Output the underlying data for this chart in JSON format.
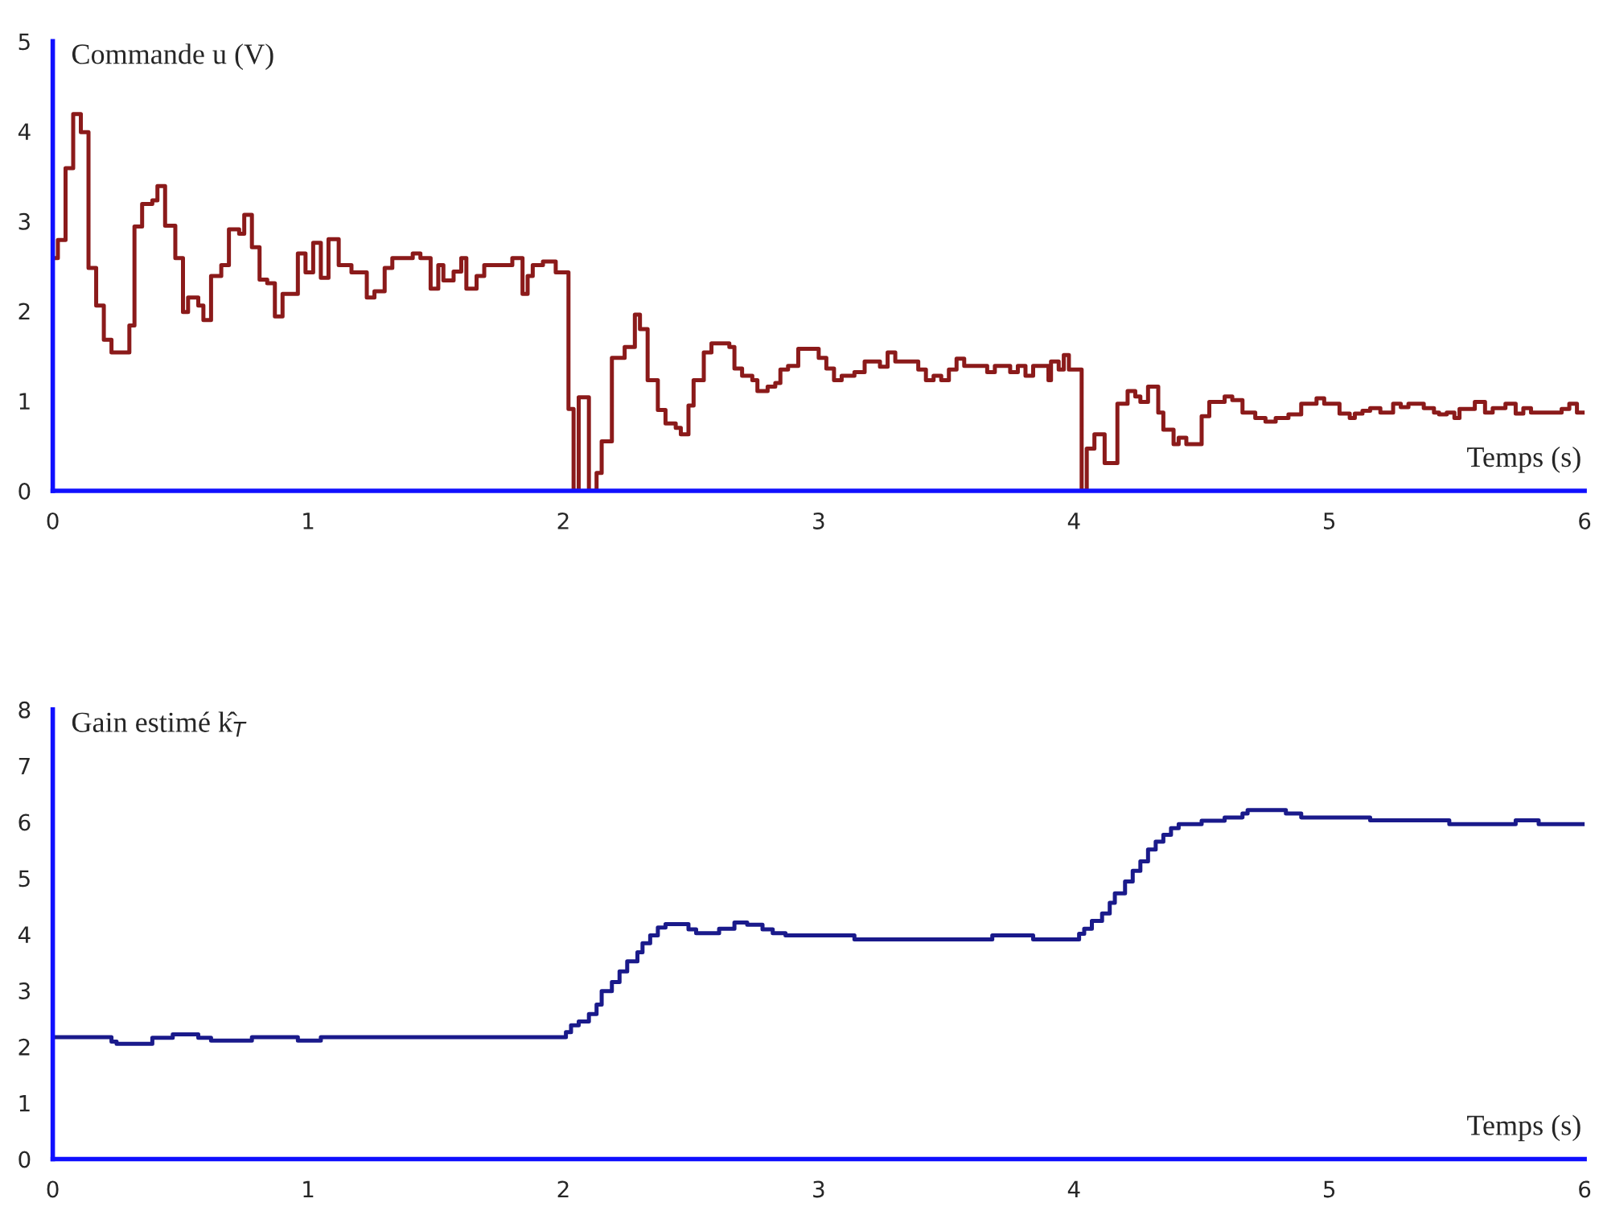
{
  "chart_data": [
    {
      "type": "step",
      "xlabel": "Temps (s)",
      "ylabel": "Commande u (V)",
      "xlim": [
        0,
        6
      ],
      "ylim": [
        0,
        5
      ],
      "xticks": [
        0,
        1,
        2,
        3,
        4,
        5,
        6
      ],
      "yticks": [
        0,
        1,
        2,
        3,
        4,
        5
      ],
      "grid": false,
      "legend": false,
      "series": [
        {
          "color": "#8b1a1a",
          "x": [
            0,
            0.02,
            0.05,
            0.08,
            0.11,
            0.14,
            0.17,
            0.2,
            0.23,
            0.3,
            0.32,
            0.35,
            0.39,
            0.41,
            0.44,
            0.48,
            0.51,
            0.53,
            0.57,
            0.59,
            0.62,
            0.66,
            0.69,
            0.73,
            0.75,
            0.78,
            0.81,
            0.84,
            0.87,
            0.9,
            0.96,
            0.99,
            1.02,
            1.05,
            1.08,
            1.12,
            1.17,
            1.23,
            1.26,
            1.3,
            1.33,
            1.41,
            1.44,
            1.48,
            1.51,
            1.53,
            1.57,
            1.6,
            1.62,
            1.66,
            1.69,
            1.8,
            1.84,
            1.86,
            1.88,
            1.92,
            1.97,
            2.02,
            2.04,
            2.06,
            2.1,
            2.13,
            2.15,
            2.19,
            2.24,
            2.28,
            2.3,
            2.33,
            2.37,
            2.4,
            2.44,
            2.46,
            2.49,
            2.51,
            2.55,
            2.58,
            2.65,
            2.67,
            2.7,
            2.74,
            2.76,
            2.8,
            2.83,
            2.85,
            2.88,
            2.92,
            3.0,
            3.03,
            3.06,
            3.09,
            3.14,
            3.18,
            3.24,
            3.27,
            3.3,
            3.39,
            3.42,
            3.45,
            3.48,
            3.51,
            3.54,
            3.57,
            3.66,
            3.69,
            3.75,
            3.78,
            3.81,
            3.84,
            3.9,
            3.91,
            3.94,
            3.96,
            3.98,
            4.03,
            4.05,
            4.08,
            4.12,
            4.17,
            4.21,
            4.24,
            4.26,
            4.29,
            4.33,
            4.35,
            4.39,
            4.41,
            4.44,
            4.5,
            4.53,
            4.59,
            4.62,
            4.66,
            4.71,
            4.75,
            4.79,
            4.84,
            4.89,
            4.95,
            4.98,
            5.04,
            5.08,
            5.1,
            5.13,
            5.16,
            5.2,
            5.25,
            5.28,
            5.31,
            5.37,
            5.41,
            5.43,
            5.46,
            5.49,
            5.51,
            5.57,
            5.61,
            5.64,
            5.69,
            5.73,
            5.76,
            5.79,
            5.91,
            5.94,
            5.97,
            6
          ],
          "values": [
            2.59,
            2.79,
            3.59,
            4.19,
            3.99,
            2.48,
            2.06,
            1.68,
            1.54,
            1.84,
            2.94,
            3.19,
            3.23,
            3.39,
            2.95,
            2.59,
            1.99,
            2.15,
            2.06,
            1.9,
            2.39,
            2.51,
            2.91,
            2.86,
            3.07,
            2.71,
            2.35,
            2.31,
            1.94,
            2.19,
            2.64,
            2.43,
            2.76,
            2.37,
            2.8,
            2.51,
            2.43,
            2.15,
            2.22,
            2.48,
            2.59,
            2.64,
            2.59,
            2.25,
            2.51,
            2.34,
            2.44,
            2.59,
            2.25,
            2.39,
            2.51,
            2.59,
            2.19,
            2.39,
            2.51,
            2.55,
            2.43,
            0.91,
            0,
            1.04,
            0,
            0.2,
            0.55,
            1.48,
            1.6,
            1.96,
            1.8,
            1.23,
            0.9,
            0.75,
            0.7,
            0.63,
            0.95,
            1.23,
            1.54,
            1.64,
            1.6,
            1.36,
            1.28,
            1.23,
            1.11,
            1.16,
            1.2,
            1.35,
            1.39,
            1.58,
            1.48,
            1.36,
            1.23,
            1.28,
            1.32,
            1.44,
            1.38,
            1.54,
            1.44,
            1.35,
            1.23,
            1.28,
            1.23,
            1.35,
            1.47,
            1.39,
            1.32,
            1.39,
            1.32,
            1.39,
            1.28,
            1.39,
            1.23,
            1.44,
            1.35,
            1.51,
            1.35,
            0,
            0.47,
            0.63,
            0.31,
            0.97,
            1.11,
            1.05,
            0.99,
            1.16,
            0.87,
            0.68,
            0.52,
            0.59,
            0.52,
            0.83,
            0.99,
            1.05,
            1.01,
            0.87,
            0.81,
            0.77,
            0.81,
            0.85,
            0.97,
            1.03,
            0.97,
            0.86,
            0.81,
            0.86,
            0.89,
            0.92,
            0.87,
            0.97,
            0.93,
            0.97,
            0.92,
            0.87,
            0.85,
            0.87,
            0.81,
            0.91,
            0.99,
            0.87,
            0.92,
            0.97,
            0.86,
            0.92,
            0.87,
            0.91,
            0.97,
            0.87,
            0.87
          ]
        }
      ]
    },
    {
      "type": "step",
      "xlabel": "Temps (s)",
      "ylabel": "Gain estimé k̂$_{T}$",
      "xlim": [
        0,
        6
      ],
      "ylim": [
        0,
        8
      ],
      "xticks": [
        0,
        1,
        2,
        3,
        4,
        5,
        6
      ],
      "yticks": [
        0,
        1,
        2,
        3,
        4,
        5,
        6,
        7,
        8
      ],
      "grid": false,
      "legend": false,
      "series": [
        {
          "color": "#1a1a8b",
          "x": [
            0,
            0.23,
            0.25,
            0.39,
            0.47,
            0.57,
            0.62,
            0.78,
            0.96,
            1.05,
            2.01,
            2.03,
            2.06,
            2.1,
            2.13,
            2.15,
            2.19,
            2.22,
            2.25,
            2.29,
            2.31,
            2.34,
            2.37,
            2.4,
            2.49,
            2.52,
            2.61,
            2.67,
            2.72,
            2.78,
            2.82,
            2.87,
            3.14,
            3.68,
            3.84,
            4.02,
            4.04,
            4.07,
            4.11,
            4.14,
            4.16,
            4.2,
            4.23,
            4.26,
            4.29,
            4.32,
            4.35,
            4.38,
            4.41,
            4.5,
            4.59,
            4.66,
            4.68,
            4.83,
            4.89,
            5.16,
            5.47,
            5.73,
            5.82,
            6
          ],
          "values": [
            2.17,
            2.09,
            2.05,
            2.16,
            2.22,
            2.16,
            2.11,
            2.17,
            2.11,
            2.17,
            2.26,
            2.38,
            2.45,
            2.58,
            2.75,
            2.99,
            3.15,
            3.34,
            3.52,
            3.68,
            3.84,
            3.98,
            4.12,
            4.18,
            4.09,
            4.02,
            4.1,
            4.21,
            4.17,
            4.09,
            4.02,
            3.98,
            3.91,
            3.98,
            3.91,
            4.01,
            4.1,
            4.24,
            4.37,
            4.56,
            4.73,
            4.94,
            5.13,
            5.3,
            5.51,
            5.65,
            5.77,
            5.89,
            5.96,
            6.02,
            6.08,
            6.15,
            6.21,
            6.15,
            6.08,
            6.03,
            5.96,
            6.03,
            5.96,
            5.96
          ]
        }
      ]
    }
  ]
}
